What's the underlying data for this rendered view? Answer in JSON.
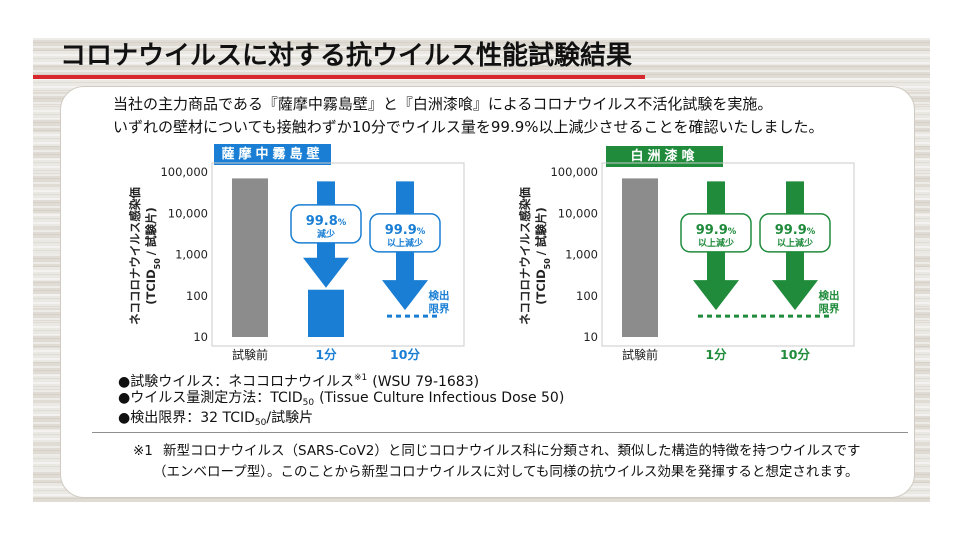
{
  "title": "コロナウイルスに対する抗ウイルス性能試験結果",
  "intro": [
    "当社の主力商品である『薩摩中霧島壁』と『白洲漆喰』によるコロナウイルス不活化試験を実施。",
    "いずれの壁材についても接触わずか10分でウイルス量を99.9%以上減少させることを確認いたしました。"
  ],
  "colors": {
    "title_rule": "#d7282f",
    "panel_border": "#cfcbc3"
  },
  "chart_data": [
    {
      "type": "bar",
      "title": "薩摩中霧島壁",
      "color": "#1a7fd4",
      "bar_colors": [
        "#8c8c8c",
        "#1a7fd4",
        "#1a7fd4"
      ],
      "ylabel": "ネココロナウイルス感染価",
      "ylabel_unit": {
        "pre": "(TCID",
        "sub": "50",
        "post": "/ 試験片)"
      },
      "yscale": "log",
      "ylim": [
        10,
        100000
      ],
      "yticks": [
        100000,
        10000,
        1000,
        100,
        10
      ],
      "ytick_labels": [
        "100,000",
        "10,000",
        "1,000",
        "100",
        "10"
      ],
      "grid": false,
      "categories": [
        "試験前",
        "1分",
        "10分"
      ],
      "values": [
        70000,
        140,
        null
      ],
      "below_detection_limit": [
        false,
        false,
        true
      ],
      "detection_limit": 32,
      "detection_label": [
        "検出",
        "限界"
      ],
      "annotations": [
        null,
        {
          "value": "99.8",
          "unit": "%",
          "text": "減少"
        },
        {
          "value": "99.9",
          "unit": "%",
          "text": "以上減少"
        }
      ]
    },
    {
      "type": "bar",
      "title": "白洲漆喰",
      "color": "#1f8b3b",
      "bar_colors": [
        "#8c8c8c",
        "#1f8b3b",
        "#1f8b3b"
      ],
      "ylabel": "ネココロナウイルス感染価",
      "ylabel_unit": {
        "pre": "(TCID",
        "sub": "50",
        "post": "/ 試験片)"
      },
      "yscale": "log",
      "ylim": [
        10,
        100000
      ],
      "yticks": [
        100000,
        10000,
        1000,
        100,
        10
      ],
      "ytick_labels": [
        "100,000",
        "10,000",
        "1,000",
        "100",
        "10"
      ],
      "grid": false,
      "categories": [
        "試験前",
        "1分",
        "10分"
      ],
      "values": [
        70000,
        null,
        null
      ],
      "below_detection_limit": [
        false,
        true,
        true
      ],
      "detection_limit": 32,
      "detection_label": [
        "検出",
        "限界"
      ],
      "annotations": [
        null,
        {
          "value": "99.9",
          "unit": "%",
          "text": "以上減少"
        },
        {
          "value": "99.9",
          "unit": "%",
          "text": "以上減少"
        }
      ]
    }
  ],
  "bullets": {
    "mark": "●",
    "items": [
      {
        "text": "試験ウイルス：ネココロナウイルス",
        "sup": "※1",
        "after": "(WSU 79-1683)"
      },
      {
        "text": "ウイルス量測定方法：TCID",
        "sub": "50",
        "after": "(Tissue Culture Infectious Dose 50)"
      },
      {
        "text": "検出限界：32 TCID",
        "sub": "50",
        "after": "/試験片"
      }
    ]
  },
  "footnote": {
    "mark": "※1",
    "lines": [
      "新型コロナウイルス（SARS-CoV2）と同じコロナウイルス科に分類され、類似した構造的特徴を持つウイルスです",
      "（エンベロープ型）。このことから新型コロナウイルスに対しても同様の抗ウイルス効果を発揮すると想定されます。"
    ]
  }
}
